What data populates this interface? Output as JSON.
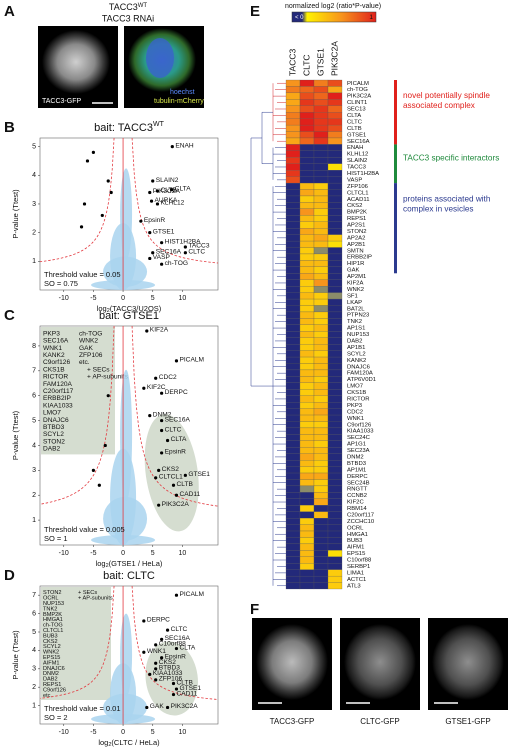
{
  "panel_a": {
    "letter": "A",
    "title": "TACC3",
    "title_sup": "WT",
    "subtitle": "TACC3 RNAi",
    "image_label": "TACC3-GFP",
    "legend": [
      "hoechst",
      "tubulin-mCherry"
    ]
  },
  "panel_f": {
    "letter": "F",
    "image_labels": [
      "TACC3-GFP",
      "CLTC-GFP",
      "GTSE1-GFP"
    ]
  },
  "chart_data": [
    {
      "letter": "B",
      "type": "scatter",
      "title": "bait: TACC3",
      "title_sup": "WT",
      "x_label": [
        "log",
        "2",
        "(TACC3/U2OS)"
      ],
      "y_label": "P-value (Ttest)",
      "xlim": [
        -14,
        16
      ],
      "ylim": [
        0,
        5.3
      ],
      "xticks": [
        -10,
        -5,
        0,
        5,
        10
      ],
      "yticks": [
        1,
        2,
        3,
        4,
        5
      ],
      "x": [
        8.3,
        5,
        4.5,
        5.8,
        8.2,
        4.8,
        5.8,
        3,
        4.5,
        6.5,
        10.5,
        5,
        10.5,
        4.5,
        6.5,
        -5,
        -6,
        -2.5,
        -2,
        -6.5,
        -7,
        -3.5
      ],
      "values": [
        5.0,
        3.8,
        3.4,
        3.45,
        3.5,
        3.1,
        3.0,
        2.4,
        2.0,
        1.65,
        1.5,
        1.3,
        1.3,
        1.1,
        0.9,
        4.8,
        4.5,
        3.8,
        3.4,
        3.0,
        2.2,
        2.6
      ],
      "point_labels": [
        "ENAH",
        "SLAIN2",
        "PIK3C2A",
        "CLTB",
        "CLTA",
        "AURKA",
        "KLHL12",
        "EpsinR",
        "GTSE1",
        "HIST1H2BA",
        "TACC3",
        "SEC16A",
        "CLTC",
        "VASP",
        "ch-TOG",
        null,
        null,
        null,
        null,
        null,
        null,
        null
      ],
      "threshold": "Threshold value = 0.05",
      "s0": "SO = 0.75",
      "color": "#000000",
      "cloud_color": "#a9d3ee",
      "threshold_color": "#e3393f"
    },
    {
      "letter": "C",
      "type": "scatter",
      "title": "bait: GTSE1",
      "x_label": [
        "log",
        "2",
        "(GTSE1 / HeLa)"
      ],
      "y_label": "P-value (Ttest)",
      "xlim": [
        -14,
        16
      ],
      "ylim": [
        0,
        8.8
      ],
      "xticks": [
        -10,
        -5,
        0,
        5,
        10
      ],
      "yticks": [
        1,
        2,
        3,
        4,
        5,
        6,
        7,
        8
      ],
      "x": [
        4,
        9,
        5.5,
        3.5,
        6.5,
        4.5,
        6.5,
        6.5,
        7.5,
        6.5,
        6,
        5.5,
        10.5,
        8.5,
        9,
        6,
        -4,
        -3,
        -5,
        -2.5
      ],
      "values": [
        8.6,
        7.4,
        6.7,
        6.3,
        6.1,
        5.2,
        5.0,
        4.6,
        4.2,
        3.7,
        3.0,
        2.7,
        2.8,
        2.4,
        2.0,
        1.6,
        2.4,
        4.0,
        3.0,
        6.0
      ],
      "point_labels": [
        "KIF2A",
        "PICALM",
        "CDC2",
        "KIF2C",
        "DERPC",
        "DNM2",
        "SEC16A",
        "CLTC",
        "CLTA",
        "EpsinR",
        "CKS2",
        "CLTCL1",
        "GTSE1",
        "CLTB",
        "CAD11",
        "PIK3C2A",
        null,
        null,
        null,
        null
      ],
      "box_lists": [
        [
          "PKP3",
          "SEC16A",
          "WNK1",
          "KANK2",
          "C9orf126",
          "CKS1B",
          "RICTOR",
          "FAM120A",
          "C20orf117",
          "ERBB2IP",
          "KIAA1033",
          "LMO7",
          "DNAJC6",
          "BTBD3",
          "SCYL2",
          "STON2",
          "DAB2"
        ],
        [
          "ch-TOG",
          "WNK2",
          "GAK",
          "ZFP106",
          "etc."
        ]
      ],
      "box_notes": [
        "+ SECs",
        "+ AP-subunits"
      ],
      "box_color": "#d5ddd0",
      "threshold": "Threshold value = 0.005",
      "s0": "SO = 1",
      "color": "#000000",
      "cloud_color": "#a9d3ee",
      "threshold_color": "#e3393f"
    },
    {
      "letter": "D",
      "type": "scatter",
      "title": "bait: CLTC",
      "x_label": [
        "log",
        "2",
        "(CLTC / HeLa)"
      ],
      "y_label": "P-value (Ttest)",
      "xlim": [
        -14,
        16
      ],
      "ylim": [
        0,
        7.5
      ],
      "xticks": [
        -10,
        -5,
        0,
        5,
        10
      ],
      "yticks": [
        1,
        2,
        3,
        4,
        5,
        6,
        7
      ],
      "x": [
        9,
        3.5,
        7.5,
        6.5,
        5.5,
        9,
        3.5,
        6.5,
        5.5,
        5.5,
        4.5,
        5.5,
        8.5,
        9,
        8.5,
        4,
        7.5
      ],
      "values": [
        7.0,
        5.6,
        5.1,
        4.6,
        4.3,
        4.1,
        3.9,
        3.6,
        3.3,
        3.0,
        2.7,
        2.4,
        2.2,
        1.9,
        1.6,
        0.9,
        0.9
      ],
      "point_labels": [
        "PICALM",
        "DERPC",
        "CLTC",
        "SEC16A",
        "C10orf88",
        "CLTA",
        "WNK1",
        "EpsinR",
        "CKS2",
        "BTBD3",
        "KIAA1033",
        "ZFP106",
        "CLTB",
        "GTSE1",
        "CAD11",
        "GAK",
        "PIK3C2A"
      ],
      "box_lists": [
        [
          "STON2",
          "OCRL",
          "NUP153",
          "TNK2",
          "BMP2K",
          "HMGA1",
          "ch-TOG",
          "CLTCL1",
          "BUB3",
          "CKS2",
          "SCYL2",
          "WNK2",
          "EPS15",
          "AIFM1",
          "DNAJC6",
          "DNM2",
          "DAB2",
          "REPS1",
          "C9orf126",
          "etc."
        ]
      ],
      "box_notes": [
        "+ SECs",
        "+ AP-subunits"
      ],
      "box_color": "#d5ddd0",
      "threshold": "Threshold value = 0.01",
      "s0": "SO = 2",
      "color": "#000000",
      "cloud_color": "#a9d3ee",
      "threshold_color": "#e3393f"
    },
    {
      "letter": "E",
      "type": "heatmap",
      "colorbar_title": "normalized log2 (ratio*P-value)",
      "colorbar_labels": [
        "< 0",
        "1"
      ],
      "columns": [
        "TACC3",
        "CLTC",
        "GTSE1",
        "PIK3C2A"
      ],
      "colors": {
        "low": "#23297a",
        "scale": [
          "#fff200",
          "#f7941d",
          "#e0201b"
        ],
        "missing": "#8b8c6a"
      },
      "rows": [
        "PICALM",
        "ch-TOG",
        "PIK3C2A",
        "CLINT1",
        "SEC13",
        "CLTA",
        "CLTC",
        "CLTB",
        "GTSE1",
        "SEC16A",
        "ENAH",
        "KLHL12",
        "SLAIN2",
        "TACC3",
        "HIST1H2BA",
        "VASP",
        "ZFP106",
        "CLTCL1",
        "ACAD11",
        "CKS2",
        "BMP2K",
        "REPS1",
        "AP2S1",
        "STON2",
        "AP2A2",
        "AP2B1",
        "SMTN",
        "ERBB2IP",
        "HIP1R",
        "GAK",
        "AP2M1",
        "KIF2A",
        "WNK2",
        "SF1",
        "LKAP",
        "BAT2L",
        "PTPN23",
        "TNK2",
        "AP1S1",
        "NUP153",
        "DAB2",
        "AP1B1",
        "SCYL2",
        "KANK2",
        "DNAJC6",
        "FAM120A",
        "ATP6V0D1",
        "LMO7",
        "CKS1B",
        "RICTOR",
        "PKP3",
        "CDC2",
        "WNK1",
        "C9orf126",
        "KIAA1033",
        "SEC24C",
        "AP1G1",
        "SEC23A",
        "DNM2",
        "BTBD3",
        "AP1M1",
        "DERPC",
        "SEC24B",
        "RNGTT",
        "CCNB2",
        "KIF2C",
        "RBM14",
        "C20orf117",
        "ZCCHC10",
        "OCRL",
        "HMGA1",
        "BUB3",
        "AIFM1",
        "EPS15",
        "C10orf88",
        "SERBP1",
        "LIMA1",
        "ACTC1",
        "ATL3"
      ],
      "values": [
        [
          0.5,
          1,
          0.6,
          0.8
        ],
        [
          0.6,
          0.7,
          0.8,
          0.4
        ],
        [
          0.4,
          0.8,
          0.7,
          1
        ],
        [
          0.4,
          0.9,
          0.8,
          0.9
        ],
        [
          0.5,
          0.8,
          0.9,
          0.7
        ],
        [
          0.6,
          1,
          0.9,
          0.8
        ],
        [
          0.6,
          1,
          0.9,
          0.9
        ],
        [
          0.5,
          1,
          0.9,
          0.8
        ],
        [
          0.5,
          0.8,
          1,
          0.6
        ],
        [
          0.4,
          0.7,
          0.9,
          0.5
        ],
        [
          1,
          0,
          0,
          0
        ],
        [
          1,
          0,
          0,
          0
        ],
        [
          0.9,
          0,
          0,
          0
        ],
        [
          1,
          0,
          0,
          0.1
        ],
        [
          0.9,
          0,
          0,
          0
        ],
        [
          0.8,
          0,
          0,
          0
        ],
        [
          0,
          0.3,
          0.2,
          0
        ],
        [
          0,
          0.4,
          0.3,
          0
        ],
        [
          0,
          0.2,
          0.3,
          0
        ],
        [
          0,
          0.3,
          0.3,
          0
        ],
        [
          0,
          0.5,
          0.2,
          0
        ],
        [
          0,
          0.3,
          0.2,
          0
        ],
        [
          0,
          0.2,
          0.3,
          0
        ],
        [
          0,
          0.4,
          0.3,
          0
        ],
        [
          0,
          0.3,
          0.4,
          0.2
        ],
        [
          0,
          0.3,
          0.3,
          0.1
        ],
        [
          0,
          0.2,
          null,
          0
        ],
        [
          0,
          0.2,
          0.2,
          0
        ],
        [
          0,
          0.3,
          0.3,
          0
        ],
        [
          0,
          0.3,
          0.2,
          0
        ],
        [
          0,
          0.4,
          0.3,
          0
        ],
        [
          0,
          0.2,
          0.5,
          0
        ],
        [
          0,
          0.2,
          null,
          0
        ],
        [
          0,
          0.3,
          0.2,
          null
        ],
        [
          0,
          0.2,
          0.2,
          0
        ],
        [
          0,
          0.2,
          null,
          0
        ],
        [
          0,
          0.3,
          0.2,
          0
        ],
        [
          0,
          0.3,
          0.2,
          0
        ],
        [
          0,
          0.2,
          0.3,
          0
        ],
        [
          0,
          0.3,
          0.2,
          0
        ],
        [
          0,
          0.2,
          0.3,
          0
        ],
        [
          0,
          0.2,
          0.3,
          0
        ],
        [
          0,
          0.3,
          0.2,
          0
        ],
        [
          0,
          0.2,
          0.3,
          0
        ],
        [
          0,
          0.2,
          0.3,
          0
        ],
        [
          0,
          0.3,
          0.3,
          0
        ],
        [
          0,
          0.3,
          0.2,
          0
        ],
        [
          0,
          0.2,
          0.3,
          0
        ],
        [
          0,
          0.2,
          0.3,
          0
        ],
        [
          0,
          0.3,
          0.2,
          0
        ],
        [
          0,
          0.2,
          0.3,
          0
        ],
        [
          0,
          0.3,
          0.4,
          0
        ],
        [
          0,
          0.3,
          0.3,
          0
        ],
        [
          0,
          0.2,
          0.2,
          0
        ],
        [
          0,
          0.3,
          0.3,
          0
        ],
        [
          0,
          0.3,
          0.3,
          0
        ],
        [
          0,
          0.3,
          0.2,
          0
        ],
        [
          0,
          0.3,
          0.3,
          0
        ],
        [
          0,
          0.4,
          0.3,
          0
        ],
        [
          0,
          0.3,
          0.2,
          0
        ],
        [
          0,
          0.2,
          0.2,
          0
        ],
        [
          0,
          0.4,
          0.4,
          0
        ],
        [
          0,
          0.3,
          0.2,
          0
        ],
        [
          0,
          null,
          0.2,
          0
        ],
        [
          0,
          0,
          0.3,
          0
        ],
        [
          0,
          0,
          0.4,
          0
        ],
        [
          0,
          0.2,
          0,
          0
        ],
        [
          0,
          0,
          0.3,
          0
        ],
        [
          0,
          0.2,
          0,
          0
        ],
        [
          0,
          0.3,
          0,
          0
        ],
        [
          0,
          0.3,
          0,
          0
        ],
        [
          0,
          0.2,
          0,
          0
        ],
        [
          0,
          0.3,
          0,
          0
        ],
        [
          0,
          0.3,
          0,
          0.1
        ],
        [
          0,
          0.3,
          0,
          0
        ],
        [
          0,
          0.2,
          0,
          0
        ],
        [
          0,
          0,
          0,
          0.2
        ],
        [
          0,
          0,
          0,
          0.2
        ],
        [
          0,
          0,
          0,
          0.2
        ]
      ],
      "groups": [
        {
          "label": [
            "novel potentially spindle",
            "associated complex"
          ],
          "color": "#e0201b"
        },
        {
          "label": [
            "TACC3 specific interactors"
          ],
          "color": "#1f8a3c"
        },
        {
          "label": [
            "proteins associated with",
            "complex in vesicles"
          ],
          "color": "#2b3a8f"
        }
      ]
    }
  ]
}
